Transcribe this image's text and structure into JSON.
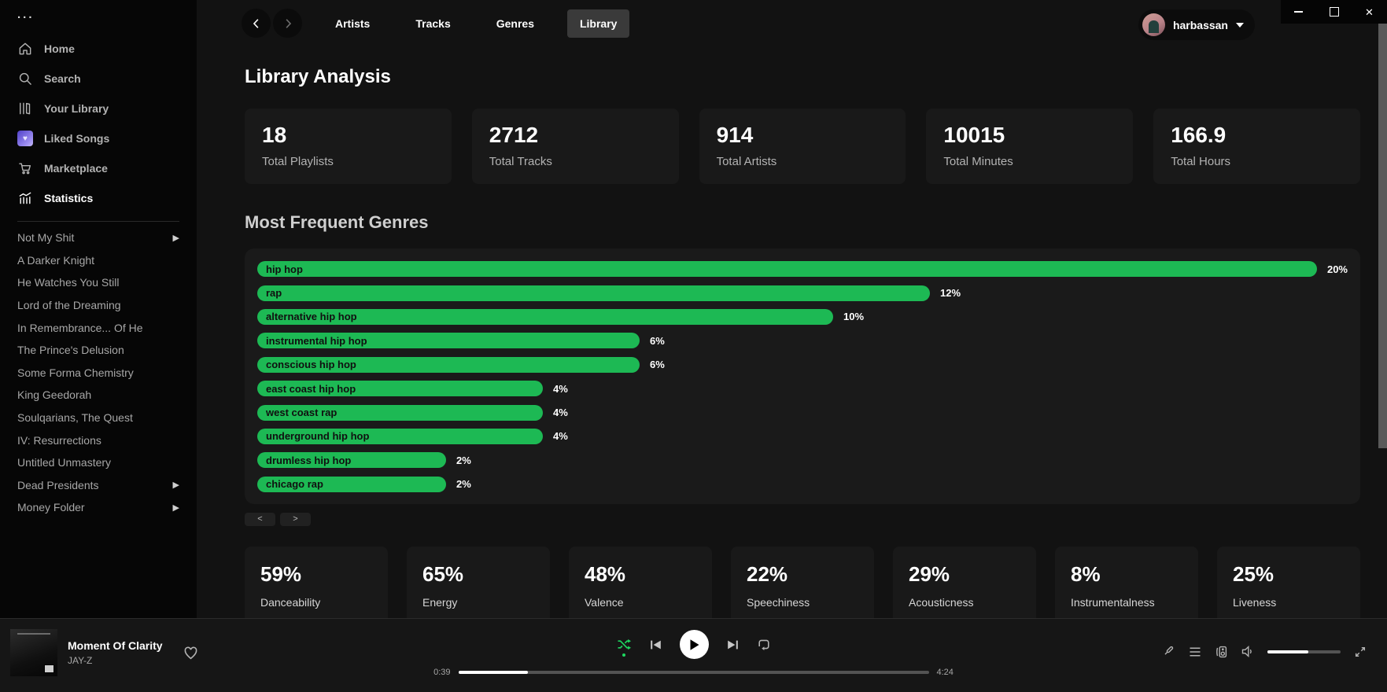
{
  "sidebar": {
    "menu_dots": "...",
    "nav": [
      {
        "label": "Home",
        "icon": "home-icon",
        "active": false
      },
      {
        "label": "Search",
        "icon": "search-icon",
        "active": false
      },
      {
        "label": "Your Library",
        "icon": "library-icon",
        "active": false
      },
      {
        "label": "Liked Songs",
        "icon": "liked-heart-icon",
        "active": false
      },
      {
        "label": "Marketplace",
        "icon": "cart-icon",
        "active": false
      },
      {
        "label": "Statistics",
        "icon": "stats-chart-icon",
        "active": true
      }
    ],
    "playlists": [
      {
        "label": "Not My Shit",
        "has_arrow": true
      },
      {
        "label": "A Darker Knight",
        "has_arrow": false
      },
      {
        "label": "He Watches You Still",
        "has_arrow": false
      },
      {
        "label": "Lord of the Dreaming",
        "has_arrow": false
      },
      {
        "label": "In Remembrance... Of He",
        "has_arrow": false
      },
      {
        "label": "The Prince's Delusion",
        "has_arrow": false
      },
      {
        "label": "Some Forma Chemistry",
        "has_arrow": false
      },
      {
        "label": "King Geedorah",
        "has_arrow": false
      },
      {
        "label": "Soulqarians, The Quest",
        "has_arrow": false
      },
      {
        "label": "IV: Resurrections",
        "has_arrow": false
      },
      {
        "label": "Untitled Unmastery",
        "has_arrow": false
      },
      {
        "label": "Dead Presidents",
        "has_arrow": true
      },
      {
        "label": "Money Folder",
        "has_arrow": true
      }
    ]
  },
  "topbar": {
    "tabs": [
      {
        "label": "Artists",
        "active": false
      },
      {
        "label": "Tracks",
        "active": false
      },
      {
        "label": "Genres",
        "active": false
      },
      {
        "label": "Library",
        "active": true
      }
    ],
    "user_name": "harbassan"
  },
  "window_controls": {
    "minimize": "minimize",
    "maximize": "maximize",
    "close": "✕"
  },
  "main": {
    "title": "Library Analysis",
    "stats": [
      {
        "value": "18",
        "label": "Total Playlists"
      },
      {
        "value": "2712",
        "label": "Total Tracks"
      },
      {
        "value": "914",
        "label": "Total Artists"
      },
      {
        "value": "10015",
        "label": "Total Minutes"
      },
      {
        "value": "166.9",
        "label": "Total Hours"
      }
    ],
    "genres_title": "Most Frequent Genres",
    "features": [
      {
        "value": "59%",
        "label": "Danceability"
      },
      {
        "value": "65%",
        "label": "Energy"
      },
      {
        "value": "48%",
        "label": "Valence"
      },
      {
        "value": "22%",
        "label": "Speechiness"
      },
      {
        "value": "29%",
        "label": "Acousticness"
      },
      {
        "value": "8%",
        "label": "Instrumentalness"
      },
      {
        "value": "25%",
        "label": "Liveness"
      }
    ]
  },
  "chart_data": {
    "type": "bar",
    "orientation": "horizontal",
    "title": "Most Frequent Genres",
    "categories": [
      "hip hop",
      "rap",
      "alternative hip hop",
      "instrumental hip hop",
      "conscious hip hop",
      "east coast hip hop",
      "west coast rap",
      "underground hip hop",
      "drumless hip hop",
      "chicago rap"
    ],
    "values": [
      20,
      12,
      10,
      6,
      6,
      4,
      4,
      4,
      2,
      2
    ],
    "unit": "%",
    "xlim": [
      0,
      20
    ],
    "bar_color": "#1db954",
    "value_labels_shown": true
  },
  "pagination": {
    "prev_label": "<",
    "next_label": ">"
  },
  "player": {
    "track": {
      "title": "Moment Of Clarity",
      "artist": "JAY-Z"
    },
    "progress": {
      "elapsed": "0:39",
      "total": "4:24",
      "percent": 14.8
    },
    "volume_percent": 56,
    "shuffle_active": true
  },
  "colors": {
    "accent_green": "#1db954",
    "shuffle_green": "#1ed760",
    "card_bg": "#191919",
    "panel_bg": "#1a1a1a"
  }
}
